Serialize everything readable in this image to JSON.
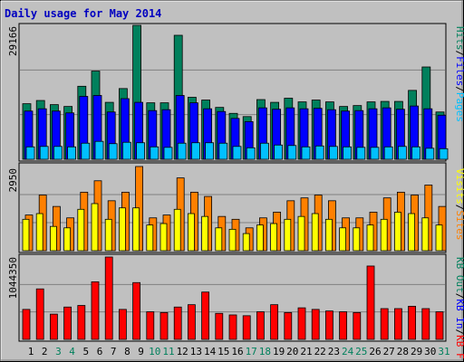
{
  "chart_data": [
    {
      "type": "bar",
      "title": "Daily usage for May 2014",
      "ylabel_max": "29166",
      "legend": [
        {
          "name": "Pages",
          "color": "#00c0ff"
        },
        {
          "name": "Files",
          "color": "#0000ff"
        },
        {
          "name": "Hits",
          "color": "#00805c"
        }
      ],
      "ylim": [
        0,
        29166
      ],
      "categories": [
        "1",
        "2",
        "3",
        "4",
        "5",
        "6",
        "7",
        "8",
        "9",
        "10",
        "11",
        "12",
        "13",
        "14",
        "15",
        "16",
        "17",
        "18",
        "19",
        "20",
        "21",
        "22",
        "23",
        "24",
        "25",
        "26",
        "27",
        "28",
        "29",
        "30",
        "31"
      ],
      "weekend_days": [
        "3",
        "4",
        "10",
        "11",
        "17",
        "18",
        "24",
        "25",
        "31"
      ],
      "series": [
        {
          "name": "Hits",
          "values": [
            12100,
            12800,
            11900,
            11500,
            15900,
            19200,
            12400,
            15400,
            29166,
            12300,
            12300,
            27000,
            13500,
            12900,
            11300,
            10000,
            9300,
            13000,
            12400,
            13300,
            12500,
            12900,
            12500,
            11500,
            11700,
            12500,
            12600,
            12600,
            15000,
            20100,
            10300
          ]
        },
        {
          "name": "Files",
          "values": [
            10500,
            11000,
            10500,
            10100,
            13700,
            13900,
            10300,
            13200,
            12400,
            10600,
            10800,
            13900,
            12300,
            11000,
            10400,
            8900,
            8200,
            11200,
            10900,
            11200,
            11000,
            11100,
            10800,
            10500,
            10600,
            11000,
            11200,
            10900,
            11600,
            11000,
            9600
          ]
        },
        {
          "name": "Pages",
          "values": [
            2700,
            2800,
            2800,
            2700,
            3500,
            3900,
            3400,
            3700,
            3600,
            2700,
            2600,
            3500,
            3600,
            3600,
            3500,
            2800,
            2500,
            3500,
            3100,
            3000,
            2700,
            2900,
            2800,
            2700,
            2600,
            2600,
            2700,
            2800,
            2700,
            2400,
            2300
          ]
        }
      ]
    },
    {
      "type": "bar",
      "ylabel_max": "2950",
      "legend": [
        {
          "name": "Visits",
          "color": "#ffff00"
        },
        {
          "name": "Sites",
          "color": "#ff8000"
        }
      ],
      "ylim": [
        0,
        2950
      ],
      "categories": [
        "1",
        "2",
        "3",
        "4",
        "5",
        "6",
        "7",
        "8",
        "9",
        "10",
        "11",
        "12",
        "13",
        "14",
        "15",
        "16",
        "17",
        "18",
        "19",
        "20",
        "21",
        "22",
        "23",
        "24",
        "25",
        "26",
        "27",
        "28",
        "29",
        "30",
        "31"
      ],
      "series": [
        {
          "name": "Sites",
          "values": [
            1250,
            1950,
            1550,
            1150,
            2050,
            2450,
            1750,
            2050,
            2950,
            1150,
            1250,
            2550,
            2050,
            1900,
            1200,
            1100,
            800,
            1150,
            1350,
            1750,
            1850,
            1950,
            1750,
            1150,
            1150,
            1350,
            1850,
            2050,
            1950,
            2300,
            1550
          ]
        },
        {
          "name": "Visits",
          "values": [
            1100,
            1300,
            850,
            800,
            1450,
            1650,
            1100,
            1500,
            1500,
            900,
            950,
            1450,
            1300,
            1200,
            800,
            750,
            600,
            900,
            950,
            1100,
            1200,
            1300,
            1100,
            800,
            800,
            900,
            1100,
            1350,
            1300,
            1150,
            900
          ]
        }
      ]
    },
    {
      "type": "bar",
      "ylabel_max": "1044350",
      "legend": [
        {
          "name": "KB F",
          "color": "#ff0000"
        },
        {
          "name": "KB In",
          "color": "#0000ff"
        },
        {
          "name": "KB Out",
          "color": "#00805c"
        }
      ],
      "ylim": [
        0,
        1044350
      ],
      "categories": [
        "1",
        "2",
        "3",
        "4",
        "5",
        "6",
        "7",
        "8",
        "9",
        "10",
        "11",
        "12",
        "13",
        "14",
        "15",
        "16",
        "17",
        "18",
        "19",
        "20",
        "21",
        "22",
        "23",
        "24",
        "25",
        "26",
        "27",
        "28",
        "29",
        "30",
        "31"
      ],
      "series": [
        {
          "name": "KB F",
          "values": [
            380000,
            640000,
            320000,
            410000,
            430000,
            730000,
            1044350,
            380000,
            720000,
            350000,
            340000,
            410000,
            440000,
            600000,
            330000,
            310000,
            300000,
            350000,
            440000,
            340000,
            400000,
            380000,
            360000,
            350000,
            340000,
            930000,
            390000,
            390000,
            420000,
            390000,
            350000
          ]
        }
      ]
    }
  ]
}
